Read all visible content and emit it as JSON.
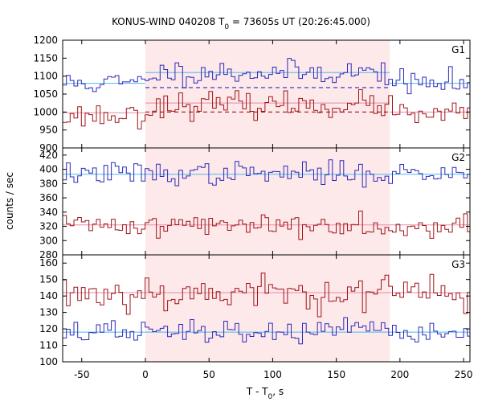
{
  "chart_data": {
    "type": "line",
    "title": "KONUS-WIND 040208 T",
    "title_sub": "0",
    "title_rest": " = 73605s UT (20:26:45.000)",
    "xlabel": "T - T",
    "xlabel_sub": "0",
    "xlabel_rest": ", s",
    "ylabel": "counts / sec",
    "xlim": [
      -65,
      255
    ],
    "x_ticks": [
      -50,
      0,
      50,
      100,
      150,
      200,
      250
    ],
    "highlight_interval": [
      0,
      192
    ],
    "highlight_color": "#fde8ea",
    "step_s": 2.944,
    "colors": {
      "blue": "#2b2bb8",
      "red": "#a01418",
      "bg_line": "#4fb8ee",
      "bg_line2": "#e88aa6"
    },
    "panels": [
      {
        "name": "G1",
        "ylim": [
          900,
          1200
        ],
        "y_ticks": [
          900,
          950,
          1000,
          1050,
          1100,
          1150,
          1200
        ],
        "series": [
          {
            "color": "blue",
            "level": 1080,
            "peak": 1110,
            "noise": 17,
            "seed": 11,
            "background": [
              {
                "y": 1080,
                "x_from": -65,
                "x_to": 0,
                "style": "solid-light"
              },
              {
                "y": 1110,
                "x_from": 0,
                "x_to": 192,
                "style": "solid-light"
              },
              {
                "y": 1068,
                "x_from": 0,
                "x_to": 192,
                "style": "dashed"
              },
              {
                "y": 1080,
                "x_from": 192,
                "x_to": 255,
                "style": "solid-light"
              }
            ]
          },
          {
            "color": "red",
            "level": 990,
            "peak": 1020,
            "noise": 17,
            "seed": 23,
            "background": [
              {
                "y": 998,
                "x_from": -65,
                "x_to": 0,
                "style": "solid-light2"
              },
              {
                "y": 1025,
                "x_from": 0,
                "x_to": 192,
                "style": "solid-light2"
              },
              {
                "y": 1000,
                "x_from": 0,
                "x_to": 192,
                "style": "dashed"
              },
              {
                "y": 1000,
                "x_from": 192,
                "x_to": 255,
                "style": "solid-light2"
              }
            ]
          }
        ]
      },
      {
        "name": "G2",
        "ylim": [
          280,
          430
        ],
        "y_ticks": [
          280,
          300,
          320,
          340,
          360,
          380,
          400,
          420
        ],
        "series": [
          {
            "color": "blue",
            "level": 394,
            "peak": 394,
            "noise": 8,
            "seed": 37,
            "background": [
              {
                "y": 393,
                "x_from": -65,
                "x_to": 255,
                "style": "solid-light"
              }
            ]
          },
          {
            "color": "red",
            "level": 322,
            "peak": 322,
            "noise": 8,
            "seed": 41,
            "background": [
              {
                "y": 322,
                "x_from": -65,
                "x_to": 255,
                "style": "solid-light2"
              }
            ]
          }
        ]
      },
      {
        "name": "G3",
        "ylim": [
          100,
          165
        ],
        "y_ticks": [
          100,
          110,
          120,
          130,
          140,
          150,
          160
        ],
        "series": [
          {
            "color": "red",
            "level": 142,
            "peak": 142,
            "noise": 5.5,
            "seed": 53,
            "background": [
              {
                "y": 142,
                "x_from": -65,
                "x_to": 255,
                "style": "solid-light2"
              }
            ]
          },
          {
            "color": "blue",
            "level": 118,
            "peak": 118,
            "noise": 3.5,
            "seed": 67,
            "background": [
              {
                "y": 118,
                "x_from": -65,
                "x_to": 255,
                "style": "solid-light"
              }
            ]
          }
        ]
      }
    ]
  }
}
